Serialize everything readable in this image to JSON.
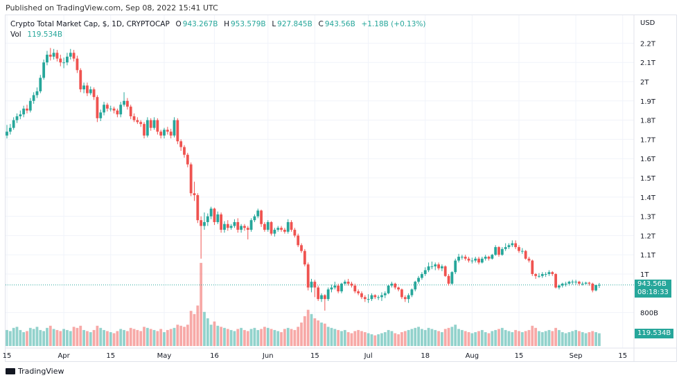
{
  "header": {
    "published": "Published on TradingView.com, Sep 08, 2022 15:41 UTC"
  },
  "legend": {
    "title": "Crypto Total Market Cap, $, 1D, CRYPTOCAP",
    "o_label": "O",
    "o": "943.267B",
    "h_label": "H",
    "h": "953.579B",
    "l_label": "L",
    "l": "927.845B",
    "c_label": "C",
    "c": "943.56B",
    "change": "+1.18B (+0.13%)",
    "vol_label": "Vol",
    "vol": "119.534B"
  },
  "price_tag": {
    "price": "943.56B",
    "countdown": "08:18:33"
  },
  "volume_tag": "119.534B",
  "footer": {
    "logo_text": "TradingView"
  },
  "colors": {
    "up": "#26a69a",
    "down": "#ef5350",
    "grid": "#f0f3fa"
  },
  "chart_data": {
    "type": "candlestick",
    "currency_label": "USD",
    "start_date": "2022-03-15",
    "unit": "B",
    "y_ticks": [
      {
        "v": 2200,
        "label": "2.2T"
      },
      {
        "v": 2100,
        "label": "2.1T"
      },
      {
        "v": 2000,
        "label": "2T"
      },
      {
        "v": 1900,
        "label": "1.9T"
      },
      {
        "v": 1800,
        "label": "1.8T"
      },
      {
        "v": 1700,
        "label": "1.7T"
      },
      {
        "v": 1600,
        "label": "1.6T"
      },
      {
        "v": 1500,
        "label": "1.5T"
      },
      {
        "v": 1400,
        "label": "1.4T"
      },
      {
        "v": 1300,
        "label": "1.3T"
      },
      {
        "v": 1200,
        "label": "1.2T"
      },
      {
        "v": 1100,
        "label": "1.1T"
      },
      {
        "v": 1000,
        "label": "1T"
      },
      {
        "v": 800,
        "label": "800B"
      }
    ],
    "x_ticks": [
      {
        "date": "2022-03-15",
        "label": "15"
      },
      {
        "date": "2022-04-01",
        "label": "Apr"
      },
      {
        "date": "2022-04-15",
        "label": "15"
      },
      {
        "date": "2022-05-01",
        "label": "May"
      },
      {
        "date": "2022-05-16",
        "label": "16"
      },
      {
        "date": "2022-06-01",
        "label": "Jun"
      },
      {
        "date": "2022-06-15",
        "label": "15"
      },
      {
        "date": "2022-07-01",
        "label": "Jul"
      },
      {
        "date": "2022-07-18",
        "label": "18"
      },
      {
        "date": "2022-08-01",
        "label": "Aug"
      },
      {
        "date": "2022-08-15",
        "label": "15"
      },
      {
        "date": "2022-09-01",
        "label": "Sep"
      },
      {
        "date": "2022-09-15",
        "label": "15"
      }
    ],
    "ohlc": [
      [
        1720,
        1775,
        1705,
        1740
      ],
      [
        1740,
        1780,
        1725,
        1760
      ],
      [
        1760,
        1815,
        1750,
        1800
      ],
      [
        1800,
        1835,
        1785,
        1820
      ],
      [
        1820,
        1850,
        1805,
        1830
      ],
      [
        1830,
        1875,
        1815,
        1860
      ],
      [
        1860,
        1880,
        1835,
        1850
      ],
      [
        1850,
        1915,
        1840,
        1900
      ],
      [
        1900,
        1945,
        1885,
        1930
      ],
      [
        1930,
        1970,
        1915,
        1950
      ],
      [
        1950,
        2035,
        1940,
        2020
      ],
      [
        2020,
        2115,
        2010,
        2100
      ],
      [
        2100,
        2160,
        2085,
        2140
      ],
      [
        2140,
        2175,
        2110,
        2130
      ],
      [
        2130,
        2170,
        2115,
        2150
      ],
      [
        2150,
        2165,
        2105,
        2120
      ],
      [
        2120,
        2140,
        2080,
        2100
      ],
      [
        2100,
        2125,
        2070,
        2100
      ],
      [
        2100,
        2150,
        2085,
        2130
      ],
      [
        2130,
        2170,
        2115,
        2150
      ],
      [
        2150,
        2165,
        2105,
        2120
      ],
      [
        2120,
        2135,
        2045,
        2060
      ],
      [
        2060,
        2070,
        1945,
        1960
      ],
      [
        1960,
        1995,
        1940,
        1980
      ],
      [
        1980,
        1995,
        1925,
        1940
      ],
      [
        1940,
        1975,
        1930,
        1960
      ],
      [
        1960,
        1970,
        1905,
        1920
      ],
      [
        1920,
        1930,
        1790,
        1810
      ],
      [
        1810,
        1855,
        1795,
        1840
      ],
      [
        1840,
        1895,
        1825,
        1880
      ],
      [
        1880,
        1890,
        1845,
        1860
      ],
      [
        1860,
        1875,
        1845,
        1860
      ],
      [
        1860,
        1870,
        1835,
        1850
      ],
      [
        1850,
        1860,
        1815,
        1830
      ],
      [
        1830,
        1895,
        1815,
        1880
      ],
      [
        1880,
        1945,
        1870,
        1900
      ],
      [
        1900,
        1915,
        1855,
        1870
      ],
      [
        1870,
        1880,
        1805,
        1820
      ],
      [
        1820,
        1835,
        1790,
        1800
      ],
      [
        1800,
        1815,
        1780,
        1790
      ],
      [
        1790,
        1800,
        1765,
        1780
      ],
      [
        1780,
        1790,
        1705,
        1720
      ],
      [
        1720,
        1815,
        1710,
        1800
      ],
      [
        1800,
        1810,
        1745,
        1760
      ],
      [
        1760,
        1815,
        1750,
        1800
      ],
      [
        1800,
        1810,
        1725,
        1740
      ],
      [
        1740,
        1750,
        1705,
        1720
      ],
      [
        1720,
        1760,
        1705,
        1750
      ],
      [
        1750,
        1765,
        1725,
        1740
      ],
      [
        1740,
        1755,
        1705,
        1720
      ],
      [
        1720,
        1815,
        1710,
        1800
      ],
      [
        1800,
        1810,
        1675,
        1690
      ],
      [
        1690,
        1700,
        1640,
        1660
      ],
      [
        1660,
        1670,
        1605,
        1620
      ],
      [
        1620,
        1630,
        1555,
        1570
      ],
      [
        1570,
        1580,
        1405,
        1420
      ],
      [
        1420,
        1480,
        1380,
        1410
      ],
      [
        1410,
        1420,
        1265,
        1280
      ],
      [
        1280,
        1300,
        1080,
        1250
      ],
      [
        1250,
        1320,
        1230,
        1270
      ],
      [
        1270,
        1315,
        1250,
        1300
      ],
      [
        1300,
        1350,
        1285,
        1340
      ],
      [
        1340,
        1345,
        1255,
        1270
      ],
      [
        1270,
        1325,
        1260,
        1310
      ],
      [
        1310,
        1320,
        1215,
        1230
      ],
      [
        1230,
        1275,
        1215,
        1260
      ],
      [
        1260,
        1280,
        1225,
        1240
      ],
      [
        1240,
        1260,
        1230,
        1250
      ],
      [
        1250,
        1285,
        1240,
        1270
      ],
      [
        1270,
        1290,
        1215,
        1230
      ],
      [
        1230,
        1260,
        1215,
        1250
      ],
      [
        1250,
        1260,
        1225,
        1240
      ],
      [
        1240,
        1250,
        1180,
        1230
      ],
      [
        1230,
        1290,
        1220,
        1280
      ],
      [
        1280,
        1310,
        1270,
        1300
      ],
      [
        1300,
        1340,
        1290,
        1330
      ],
      [
        1330,
        1335,
        1245,
        1260
      ],
      [
        1260,
        1270,
        1220,
        1230
      ],
      [
        1230,
        1280,
        1220,
        1270
      ],
      [
        1270,
        1275,
        1200,
        1210
      ],
      [
        1210,
        1240,
        1195,
        1230
      ],
      [
        1230,
        1250,
        1220,
        1240
      ],
      [
        1240,
        1250,
        1220,
        1230
      ],
      [
        1230,
        1240,
        1210,
        1220
      ],
      [
        1220,
        1285,
        1210,
        1270
      ],
      [
        1270,
        1280,
        1220,
        1230
      ],
      [
        1230,
        1240,
        1190,
        1200
      ],
      [
        1200,
        1210,
        1140,
        1150
      ],
      [
        1150,
        1160,
        1110,
        1120
      ],
      [
        1120,
        1130,
        1040,
        1050
      ],
      [
        1050,
        1060,
        915,
        930
      ],
      [
        930,
        975,
        905,
        960
      ],
      [
        960,
        970,
        880,
        930
      ],
      [
        930,
        940,
        860,
        870
      ],
      [
        870,
        900,
        855,
        890
      ],
      [
        890,
        895,
        810,
        870
      ],
      [
        870,
        930,
        860,
        920
      ],
      [
        920,
        945,
        905,
        930
      ],
      [
        930,
        960,
        920,
        940
      ],
      [
        940,
        950,
        900,
        910
      ],
      [
        910,
        955,
        900,
        950
      ],
      [
        950,
        970,
        940,
        960
      ],
      [
        960,
        975,
        940,
        950
      ],
      [
        950,
        960,
        930,
        940
      ],
      [
        940,
        950,
        900,
        910
      ],
      [
        910,
        920,
        890,
        900
      ],
      [
        900,
        910,
        870,
        880
      ],
      [
        880,
        890,
        855,
        870
      ],
      [
        870,
        895,
        850,
        870
      ],
      [
        870,
        900,
        860,
        890
      ],
      [
        890,
        895,
        870,
        880
      ],
      [
        880,
        890,
        865,
        880
      ],
      [
        880,
        905,
        860,
        890
      ],
      [
        890,
        910,
        875,
        900
      ],
      [
        900,
        945,
        895,
        940
      ],
      [
        940,
        960,
        930,
        950
      ],
      [
        950,
        955,
        920,
        930
      ],
      [
        930,
        935,
        910,
        920
      ],
      [
        920,
        925,
        870,
        880
      ],
      [
        880,
        890,
        855,
        870
      ],
      [
        870,
        900,
        850,
        890
      ],
      [
        890,
        925,
        880,
        920
      ],
      [
        920,
        965,
        910,
        960
      ],
      [
        960,
        990,
        950,
        980
      ],
      [
        980,
        1010,
        970,
        1000
      ],
      [
        1000,
        1035,
        990,
        1020
      ],
      [
        1020,
        1060,
        1010,
        1040
      ],
      [
        1040,
        1065,
        1025,
        1040
      ],
      [
        1040,
        1060,
        1020,
        1050
      ],
      [
        1050,
        1060,
        1020,
        1030
      ],
      [
        1030,
        1050,
        1015,
        1040
      ],
      [
        1040,
        1045,
        985,
        990
      ],
      [
        990,
        1000,
        940,
        950
      ],
      [
        950,
        1015,
        945,
        1010
      ],
      [
        1010,
        1080,
        1000,
        1070
      ],
      [
        1070,
        1105,
        1060,
        1090
      ],
      [
        1090,
        1100,
        1075,
        1090
      ],
      [
        1090,
        1100,
        1070,
        1080
      ],
      [
        1080,
        1090,
        1060,
        1070
      ],
      [
        1070,
        1085,
        1055,
        1070
      ],
      [
        1070,
        1090,
        1060,
        1080
      ],
      [
        1080,
        1090,
        1050,
        1060
      ],
      [
        1060,
        1090,
        1055,
        1080
      ],
      [
        1080,
        1100,
        1070,
        1090
      ],
      [
        1090,
        1095,
        1070,
        1080
      ],
      [
        1080,
        1105,
        1075,
        1100
      ],
      [
        1100,
        1150,
        1095,
        1140
      ],
      [
        1140,
        1145,
        1090,
        1100
      ],
      [
        1100,
        1140,
        1095,
        1130
      ],
      [
        1130,
        1160,
        1120,
        1140
      ],
      [
        1140,
        1160,
        1130,
        1150
      ],
      [
        1150,
        1175,
        1140,
        1160
      ],
      [
        1160,
        1175,
        1130,
        1140
      ],
      [
        1140,
        1150,
        1110,
        1120
      ],
      [
        1120,
        1135,
        1105,
        1120
      ],
      [
        1120,
        1125,
        1075,
        1080
      ],
      [
        1080,
        1090,
        1060,
        1070
      ],
      [
        1070,
        1075,
        990,
        1000
      ],
      [
        1000,
        1005,
        975,
        990
      ],
      [
        990,
        1005,
        980,
        990
      ],
      [
        990,
        1010,
        980,
        1000
      ],
      [
        1000,
        1010,
        985,
        1000
      ],
      [
        1000,
        1020,
        990,
        1010
      ],
      [
        1010,
        1015,
        990,
        1000
      ],
      [
        1000,
        1005,
        925,
        930
      ],
      [
        930,
        945,
        920,
        940
      ],
      [
        940,
        955,
        930,
        950
      ],
      [
        950,
        960,
        935,
        950
      ],
      [
        950,
        965,
        940,
        960
      ],
      [
        960,
        970,
        945,
        960
      ],
      [
        960,
        970,
        945,
        960
      ],
      [
        960,
        965,
        940,
        950
      ],
      [
        950,
        960,
        940,
        950
      ],
      [
        950,
        960,
        945,
        955
      ],
      [
        955,
        960,
        940,
        950
      ],
      [
        950,
        955,
        905,
        915
      ],
      [
        915,
        945,
        910,
        942.38
      ],
      [
        943.267,
        953.579,
        927.845,
        943.56
      ]
    ],
    "volume": [
      150,
      140,
      170,
      180,
      150,
      130,
      140,
      170,
      160,
      180,
      150,
      140,
      170,
      190,
      160,
      150,
      140,
      160,
      150,
      140,
      180,
      170,
      190,
      150,
      140,
      130,
      150,
      190,
      170,
      150,
      140,
      130,
      120,
      140,
      160,
      150,
      140,
      170,
      160,
      150,
      140,
      180,
      170,
      160,
      150,
      140,
      160,
      130,
      150,
      160,
      170,
      200,
      190,
      180,
      200,
      330,
      300,
      380,
      780,
      320,
      260,
      200,
      230,
      190,
      180,
      170,
      160,
      150,
      140,
      160,
      170,
      150,
      140,
      160,
      170,
      150,
      160,
      180,
      170,
      160,
      150,
      140,
      130,
      160,
      170,
      160,
      150,
      180,
      220,
      280,
      340,
      300,
      260,
      240,
      220,
      210,
      180,
      170,
      160,
      150,
      140,
      150,
      130,
      120,
      140,
      150,
      140,
      130,
      120,
      110,
      100,
      110,
      120,
      130,
      150,
      140,
      120,
      110,
      130,
      140,
      150,
      160,
      170,
      180,
      160,
      150,
      170,
      160,
      150,
      140,
      130,
      160,
      170,
      180,
      200,
      160,
      150,
      140,
      130,
      120,
      130,
      140,
      150,
      130,
      120,
      140,
      150,
      160,
      170,
      150,
      140,
      130,
      150,
      140,
      130,
      140,
      150,
      190,
      170,
      140,
      130,
      140,
      150,
      140,
      170,
      150,
      130,
      120,
      130,
      140,
      150,
      140,
      130,
      120,
      130,
      140,
      130,
      119.534
    ],
    "last_price": 943.56,
    "grid": true
  }
}
